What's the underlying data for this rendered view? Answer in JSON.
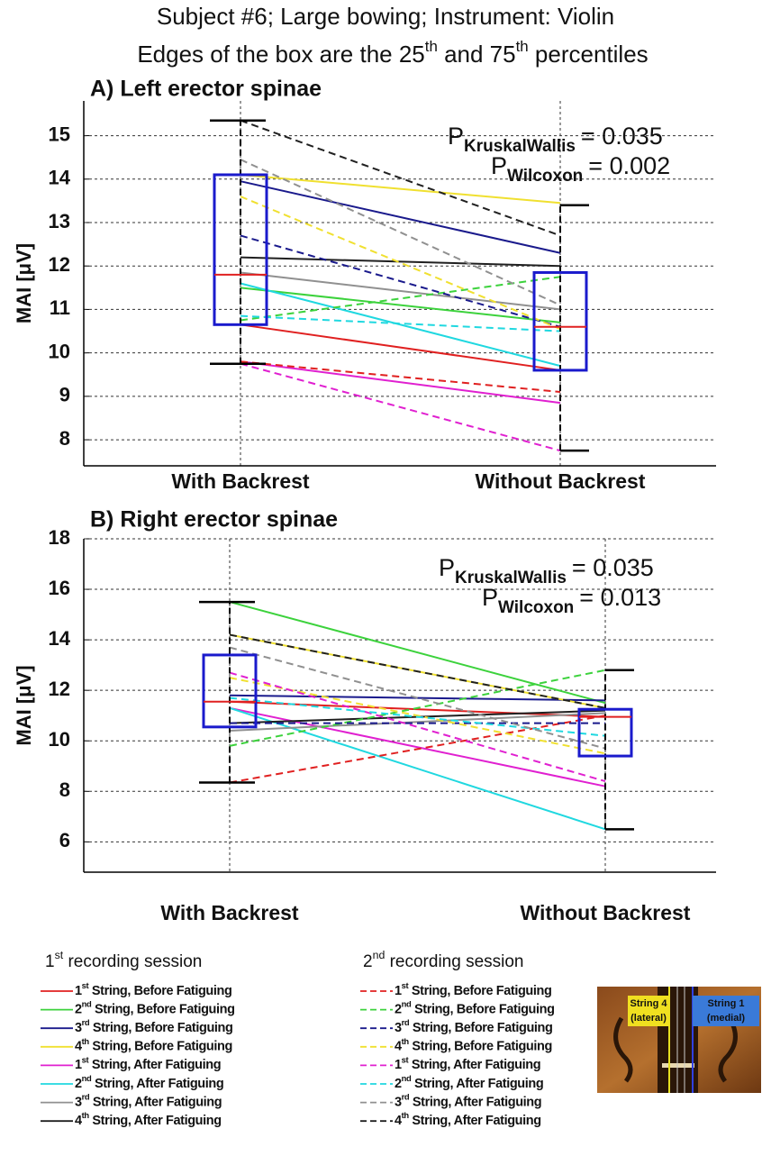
{
  "title": [
    "Subject #6; Large bowing; Instrument: Violin",
    "Edges of the box are the 25th and 75th percentiles"
  ],
  "chart_data": [
    {
      "type": "box",
      "title": "A) Left erector spinae",
      "y_label": "MAI [μV]",
      "categories": [
        "With Backrest",
        "Without Backrest"
      ],
      "ylim": [
        7.4,
        15.8
      ],
      "yticks": [
        8,
        9,
        10,
        11,
        12,
        13,
        14,
        15
      ],
      "grid": true,
      "boxes": [
        {
          "q1": 10.65,
          "median": 11.8,
          "q3": 14.1,
          "whisker_low": 9.75,
          "whisker_high": 15.35
        },
        {
          "q1": 9.6,
          "median": 10.6,
          "q3": 11.85,
          "whisker_low": 7.75,
          "whisker_high": 13.4
        }
      ],
      "stats": [
        {
          "label": "P",
          "subscript": "KruskalWallis",
          "value": "= 0.035"
        },
        {
          "label": "P",
          "subscript": "Wilcoxon",
          "value": "= 0.002"
        }
      ],
      "series": [
        {
          "values": [
            10.65,
            9.6
          ]
        },
        {
          "values": [
            11.5,
            10.7
          ]
        },
        {
          "values": [
            13.95,
            12.3
          ]
        },
        {
          "values": [
            14.1,
            13.45
          ]
        },
        {
          "values": [
            9.8,
            8.85
          ]
        },
        {
          "values": [
            11.6,
            9.7
          ]
        },
        {
          "values": [
            11.85,
            11.0
          ]
        },
        {
          "values": [
            12.2,
            12.0
          ]
        },
        {
          "values": [
            9.8,
            9.1
          ]
        },
        {
          "values": [
            10.75,
            11.75
          ]
        },
        {
          "values": [
            12.7,
            10.6
          ]
        },
        {
          "values": [
            13.6,
            10.55
          ]
        },
        {
          "values": [
            9.75,
            7.75
          ]
        },
        {
          "values": [
            10.85,
            10.5
          ]
        },
        {
          "values": [
            14.45,
            11.1
          ]
        },
        {
          "values": [
            15.35,
            12.7
          ]
        }
      ]
    },
    {
      "type": "box",
      "title": "B) Right erector spinae",
      "y_label": "MAI [μV]",
      "categories": [
        "With Backrest",
        "Without Backrest"
      ],
      "ylim": [
        4.8,
        18
      ],
      "yticks": [
        6,
        8,
        10,
        12,
        14,
        16,
        18
      ],
      "grid": true,
      "boxes": [
        {
          "q1": 10.55,
          "median": 11.55,
          "q3": 13.4,
          "whisker_low": 8.35,
          "whisker_high": 15.5
        },
        {
          "q1": 9.4,
          "median": 10.95,
          "q3": 11.25,
          "whisker_low": 6.5,
          "whisker_high": 12.8
        }
      ],
      "stats": [
        {
          "label": "P",
          "subscript": "KruskalWallis",
          "value": "= 0.035"
        },
        {
          "label": "P",
          "subscript": "Wilcoxon",
          "value": "= 0.013"
        }
      ],
      "series": [
        {
          "values": [
            11.55,
            10.95
          ]
        },
        {
          "values": [
            15.5,
            11.5
          ]
        },
        {
          "values": [
            11.8,
            11.6
          ]
        },
        {
          "values": [
            14.2,
            11.3
          ]
        },
        {
          "values": [
            11.3,
            8.2
          ]
        },
        {
          "values": [
            11.3,
            6.5
          ]
        },
        {
          "values": [
            10.4,
            11.1
          ]
        },
        {
          "values": [
            10.7,
            11.2
          ]
        },
        {
          "values": [
            8.35,
            11.0
          ]
        },
        {
          "values": [
            9.8,
            12.8
          ]
        },
        {
          "values": [
            10.7,
            10.7
          ]
        },
        {
          "values": [
            12.5,
            9.5
          ]
        },
        {
          "values": [
            12.7,
            8.4
          ]
        },
        {
          "values": [
            11.7,
            10.2
          ]
        },
        {
          "values": [
            13.7,
            9.7
          ]
        },
        {
          "values": [
            14.2,
            11.3
          ]
        }
      ]
    }
  ],
  "legend": {
    "sessions": [
      {
        "title": "1st recording session",
        "line_style": "solid",
        "entries": [
          {
            "name": "1st String, Before Fatiguing",
            "color": "#e02020"
          },
          {
            "name": "2nd String, Before Fatiguing",
            "color": "#3cd23c"
          },
          {
            "name": "3rd String, Before Fatiguing",
            "color": "#1a1a8c"
          },
          {
            "name": "4th String, Before Fatiguing",
            "color": "#f0e030"
          },
          {
            "name": "1st String, After Fatiguing",
            "color": "#e020d0"
          },
          {
            "name": "2nd String, After Fatiguing",
            "color": "#20d8e0"
          },
          {
            "name": "3rd String, After Fatiguing",
            "color": "#909090"
          },
          {
            "name": "4th String, After Fatiguing",
            "color": "#202020"
          }
        ]
      },
      {
        "title": "2nd recording session",
        "line_style": "dashed",
        "entries": [
          {
            "name": "1st String, Before Fatiguing",
            "color": "#e02020"
          },
          {
            "name": "2nd String, Before Fatiguing",
            "color": "#3cd23c"
          },
          {
            "name": "3rd String, Before Fatiguing",
            "color": "#1a1a8c"
          },
          {
            "name": "4th String, Before Fatiguing",
            "color": "#f0e030"
          },
          {
            "name": "1st String, After Fatiguing",
            "color": "#e020d0"
          },
          {
            "name": "2nd String, After Fatiguing",
            "color": "#20d8e0"
          },
          {
            "name": "3rd String, After Fatiguing",
            "color": "#909090"
          },
          {
            "name": "4th String, After Fatiguing",
            "color": "#202020"
          }
        ]
      }
    ]
  },
  "image": {
    "labels": [
      [
        "String 4",
        "(lateral)"
      ],
      [
        "String 1",
        "(medial)"
      ]
    ]
  }
}
